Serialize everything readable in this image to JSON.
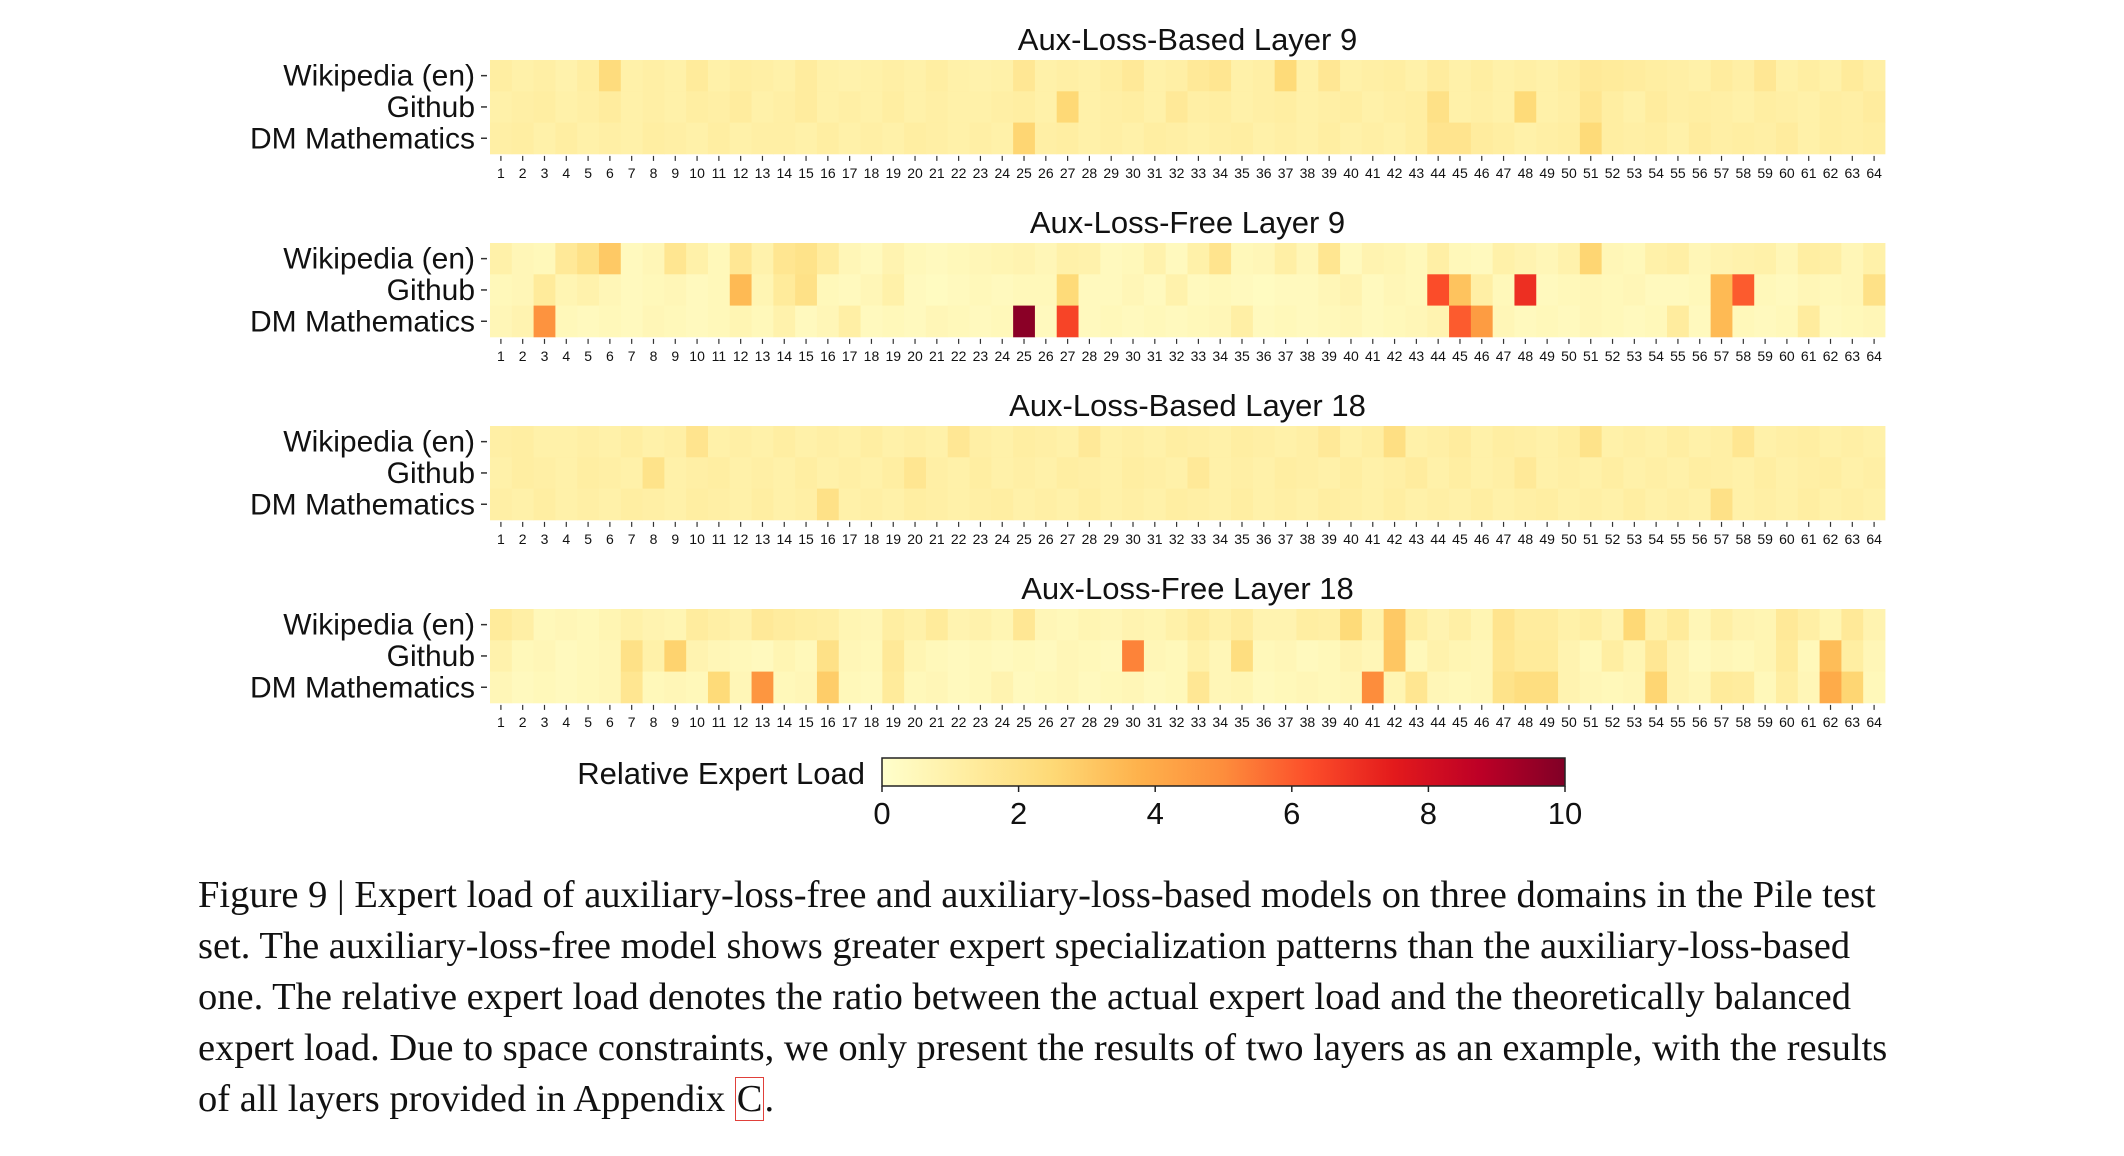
{
  "chart_data": {
    "type": "heatmap",
    "domains": [
      "Wikipedia (en)",
      "Github",
      "DM Mathematics"
    ],
    "experts": [
      "1",
      "2",
      "3",
      "4",
      "5",
      "6",
      "7",
      "8",
      "9",
      "10",
      "11",
      "12",
      "13",
      "14",
      "15",
      "16",
      "17",
      "18",
      "19",
      "20",
      "21",
      "22",
      "23",
      "24",
      "25",
      "26",
      "27",
      "28",
      "29",
      "30",
      "31",
      "32",
      "33",
      "34",
      "35",
      "36",
      "37",
      "38",
      "39",
      "40",
      "41",
      "42",
      "43",
      "44",
      "45",
      "46",
      "47",
      "48",
      "49",
      "50",
      "51",
      "52",
      "53",
      "54",
      "55",
      "56",
      "57",
      "58",
      "59",
      "60",
      "61",
      "62",
      "63",
      "64"
    ],
    "colorbar": {
      "label": "Relative Expert Load",
      "range": [
        0,
        10
      ],
      "ticks": [
        "0",
        "2",
        "4",
        "6",
        "8",
        "10"
      ]
    },
    "panels": [
      {
        "title": "Aux-Loss-Based Layer 9",
        "values": [
          [
            1.2,
            1.0,
            1.1,
            0.9,
            1.2,
            2.3,
            1.0,
            1.1,
            1.0,
            1.4,
            1.0,
            1.2,
            1.1,
            1.0,
            1.3,
            1.0,
            0.9,
            1.0,
            1.1,
            1.0,
            1.2,
            1.0,
            0.9,
            1.0,
            1.6,
            1.0,
            1.1,
            1.0,
            1.2,
            1.5,
            1.0,
            1.1,
            1.5,
            1.7,
            1.0,
            1.1,
            2.4,
            1.0,
            1.6,
            1.0,
            1.1,
            1.2,
            1.0,
            1.3,
            1.0,
            1.2,
            1.0,
            1.1,
            1.0,
            1.2,
            1.5,
            1.4,
            1.3,
            1.2,
            1.1,
            1.0,
            1.3,
            1.1,
            1.6,
            1.0,
            1.2,
            1.0,
            1.4,
            1.1
          ],
          [
            1.0,
            1.1,
            1.2,
            1.0,
            1.1,
            1.3,
            1.0,
            1.1,
            1.0,
            1.2,
            1.1,
            1.3,
            1.0,
            1.1,
            1.3,
            1.0,
            1.1,
            1.0,
            1.2,
            1.0,
            1.1,
            1.0,
            1.0,
            1.1,
            1.2,
            1.0,
            2.5,
            1.0,
            1.1,
            1.2,
            1.0,
            1.5,
            1.1,
            1.2,
            1.0,
            1.1,
            1.2,
            1.0,
            1.1,
            1.2,
            1.0,
            1.1,
            1.2,
            2.0,
            1.0,
            1.1,
            1.0,
            2.4,
            1.0,
            1.1,
            1.7,
            1.2,
            1.0,
            1.3,
            1.1,
            1.2,
            1.1,
            1.0,
            1.2,
            1.1,
            1.0,
            1.2,
            1.1,
            1.3
          ],
          [
            1.1,
            1.2,
            1.0,
            1.2,
            1.0,
            1.1,
            1.0,
            1.2,
            1.1,
            1.0,
            1.2,
            1.0,
            1.1,
            1.1,
            1.0,
            1.2,
            1.0,
            1.1,
            1.0,
            1.2,
            1.1,
            1.0,
            1.1,
            1.0,
            2.6,
            1.1,
            1.2,
            1.0,
            1.1,
            1.0,
            1.2,
            1.1,
            1.0,
            1.1,
            1.2,
            1.0,
            1.1,
            1.0,
            1.2,
            1.0,
            1.1,
            1.0,
            1.2,
            1.8,
            1.8,
            1.3,
            1.2,
            1.0,
            1.1,
            1.2,
            2.4,
            1.2,
            1.1,
            1.2,
            1.0,
            1.3,
            1.1,
            1.2,
            1.1,
            1.3,
            1.0,
            1.2,
            1.1,
            1.2
          ]
        ]
      },
      {
        "title": "Aux-Loss-Free Layer 9",
        "values": [
          [
            1.0,
            0.6,
            0.5,
            1.5,
            2.0,
            3.0,
            0.4,
            0.6,
            1.7,
            1.0,
            0.5,
            1.6,
            0.9,
            1.7,
            1.9,
            1.3,
            0.6,
            0.4,
            0.8,
            0.5,
            0.4,
            0.5,
            0.6,
            0.7,
            0.8,
            0.6,
            1.0,
            0.9,
            0.4,
            0.5,
            0.9,
            0.4,
            1.0,
            1.8,
            0.5,
            0.6,
            1.1,
            0.6,
            1.7,
            0.4,
            0.8,
            0.7,
            0.5,
            1.1,
            0.5,
            0.4,
            1.0,
            0.8,
            0.6,
            0.9,
            2.6,
            0.6,
            0.5,
            1.0,
            1.1,
            0.6,
            0.8,
            0.9,
            1.0,
            0.6,
            1.2,
            1.1,
            0.6,
            1.0
          ],
          [
            0.5,
            0.6,
            1.4,
            0.7,
            0.9,
            0.6,
            0.4,
            0.5,
            0.6,
            0.4,
            0.5,
            3.5,
            0.7,
            1.4,
            2.0,
            0.5,
            0.4,
            0.6,
            1.0,
            0.4,
            0.3,
            0.4,
            0.5,
            0.4,
            0.5,
            0.5,
            2.4,
            0.4,
            0.4,
            0.6,
            0.4,
            0.9,
            0.4,
            0.5,
            0.4,
            0.3,
            0.4,
            0.4,
            0.6,
            0.8,
            0.4,
            0.6,
            0.5,
            6.3,
            3.2,
            1.1,
            0.5,
            7.0,
            0.4,
            0.5,
            0.6,
            0.5,
            0.6,
            0.4,
            0.4,
            0.5,
            3.5,
            6.0,
            0.5,
            0.4,
            0.6,
            0.5,
            0.6,
            2.0
          ],
          [
            0.6,
            0.8,
            4.8,
            0.5,
            0.4,
            0.5,
            0.4,
            0.6,
            0.5,
            0.4,
            0.5,
            0.7,
            0.5,
            0.9,
            0.4,
            0.6,
            1.1,
            0.4,
            0.5,
            0.4,
            0.6,
            0.5,
            0.4,
            0.5,
            9.8,
            0.4,
            6.5,
            0.4,
            0.5,
            0.4,
            0.5,
            0.4,
            0.5,
            0.6,
            1.1,
            0.4,
            0.5,
            0.4,
            0.5,
            0.6,
            0.4,
            0.5,
            0.6,
            0.8,
            6.0,
            4.5,
            0.6,
            0.4,
            0.5,
            0.4,
            0.6,
            0.5,
            0.4,
            0.5,
            1.3,
            0.4,
            3.5,
            0.5,
            0.4,
            0.5,
            1.3,
            0.4,
            0.5,
            0.6
          ]
        ]
      },
      {
        "title": "Aux-Loss-Based Layer 18",
        "values": [
          [
            1.1,
            1.2,
            1.0,
            1.0,
            1.1,
            1.0,
            1.2,
            1.0,
            1.1,
            1.8,
            1.0,
            1.1,
            1.0,
            1.2,
            1.0,
            1.1,
            1.0,
            1.2,
            1.0,
            1.1,
            1.0,
            1.6,
            1.1,
            1.0,
            1.2,
            1.1,
            1.0,
            1.5,
            1.0,
            1.1,
            1.0,
            1.2,
            1.1,
            1.0,
            1.2,
            1.1,
            1.0,
            1.1,
            1.5,
            1.0,
            1.2,
            2.1,
            1.0,
            1.1,
            1.3,
            1.0,
            1.2,
            1.1,
            1.0,
            1.2,
            1.9,
            1.0,
            1.1,
            1.0,
            1.2,
            1.0,
            1.1,
            1.7,
            1.0,
            1.1,
            1.2,
            1.0,
            1.1,
            1.0
          ],
          [
            1.0,
            1.2,
            1.1,
            1.0,
            1.2,
            1.1,
            1.0,
            1.9,
            1.0,
            1.1,
            1.2,
            1.0,
            1.1,
            1.0,
            1.2,
            1.0,
            1.1,
            1.0,
            1.2,
            1.7,
            1.1,
            1.0,
            1.2,
            1.0,
            1.1,
            1.0,
            1.2,
            1.1,
            1.0,
            1.2,
            1.1,
            1.0,
            1.5,
            1.0,
            1.1,
            1.0,
            1.2,
            1.1,
            1.0,
            1.2,
            1.0,
            1.1,
            1.3,
            1.0,
            1.2,
            1.0,
            1.1,
            1.5,
            1.0,
            1.1,
            1.0,
            1.2,
            1.0,
            1.1,
            1.0,
            1.2,
            1.1,
            1.0,
            1.2,
            1.0,
            1.1,
            1.2,
            1.0,
            1.1
          ],
          [
            1.1,
            1.0,
            1.2,
            1.0,
            1.1,
            1.0,
            1.2,
            1.1,
            1.0,
            1.2,
            1.1,
            1.0,
            1.2,
            1.0,
            1.1,
            2.0,
            1.0,
            1.1,
            1.0,
            1.2,
            1.1,
            1.0,
            1.1,
            1.2,
            1.0,
            1.1,
            1.0,
            1.2,
            1.0,
            1.1,
            1.0,
            1.2,
            1.1,
            1.0,
            1.2,
            1.0,
            1.1,
            1.0,
            1.2,
            1.1,
            1.0,
            1.2,
            1.0,
            1.1,
            1.0,
            1.2,
            1.0,
            1.1,
            1.2,
            1.0,
            1.1,
            1.0,
            1.2,
            1.0,
            1.1,
            1.0,
            2.0,
            1.0,
            1.1,
            1.0,
            1.2,
            1.0,
            1.1,
            1.0
          ]
        ]
      },
      {
        "title": "Aux-Loss-Free Layer 18",
        "values": [
          [
            1.4,
            1.1,
            0.5,
            0.6,
            0.5,
            0.7,
            1.0,
            0.8,
            0.7,
            1.3,
            1.1,
            0.9,
            1.5,
            1.3,
            1.2,
            1.1,
            0.7,
            0.6,
            1.2,
            1.0,
            1.4,
            0.8,
            0.9,
            0.7,
            1.6,
            0.6,
            0.5,
            0.7,
            0.6,
            0.8,
            0.7,
            1.0,
            1.3,
            1.0,
            1.3,
            0.8,
            0.8,
            1.2,
            1.1,
            2.4,
            0.9,
            3.0,
            1.2,
            0.8,
            1.1,
            0.7,
            1.8,
            1.3,
            1.3,
            1.0,
            1.2,
            0.8,
            2.5,
            1.0,
            1.4,
            0.6,
            1.1,
            0.8,
            0.7,
            1.5,
            1.1,
            0.7,
            1.5,
            0.8
          ],
          [
            0.9,
            0.5,
            0.6,
            0.4,
            0.5,
            0.6,
            2.0,
            1.0,
            2.7,
            0.8,
            0.6,
            0.5,
            0.4,
            0.7,
            0.5,
            2.0,
            0.6,
            0.5,
            1.5,
            0.7,
            0.5,
            0.4,
            0.5,
            0.4,
            0.5,
            0.4,
            0.6,
            0.5,
            0.4,
            5.2,
            0.6,
            0.5,
            1.0,
            0.6,
            2.2,
            0.5,
            0.6,
            0.4,
            0.5,
            0.8,
            0.6,
            3.1,
            0.5,
            0.9,
            0.7,
            0.6,
            1.7,
            1.4,
            1.4,
            0.8,
            0.5,
            1.2,
            0.7,
            1.6,
            0.8,
            0.4,
            0.6,
            0.5,
            0.7,
            1.4,
            0.5,
            3.4,
            1.2,
            0.6
          ],
          [
            0.6,
            0.4,
            0.5,
            0.4,
            0.5,
            0.6,
            1.7,
            0.5,
            0.6,
            0.5,
            2.4,
            0.6,
            4.7,
            0.5,
            0.6,
            2.9,
            0.5,
            0.4,
            1.4,
            0.5,
            0.6,
            0.4,
            0.5,
            0.8,
            0.4,
            0.5,
            0.6,
            0.4,
            0.5,
            0.6,
            0.4,
            0.5,
            1.6,
            0.6,
            0.7,
            0.4,
            0.5,
            0.6,
            0.5,
            0.6,
            5.0,
            0.7,
            1.7,
            0.6,
            0.5,
            0.6,
            1.9,
            2.2,
            2.2,
            0.8,
            0.6,
            0.5,
            0.6,
            2.6,
            0.8,
            0.6,
            1.4,
            1.3,
            0.5,
            1.2,
            0.6,
            4.0,
            2.6,
            0.5
          ]
        ]
      }
    ]
  },
  "caption": {
    "text": "Figure 9 | Expert load of auxiliary-loss-free and auxiliary-loss-based models on three domains in the Pile test set. The auxiliary-loss-free model shows greater expert specialization patterns than the auxiliary-loss-based one. The relative expert load denotes the ratio between the actual expert load and the theoretically balanced expert load. Due to space constraints, we only present the results of two layers as an example, with the results of all layers provided in Appendix ",
    "appendix_ref": "C",
    "end": "."
  },
  "colors": {
    "colormap": [
      "#ffffcc",
      "#ffeda0",
      "#fed976",
      "#feb24c",
      "#fd8d3c",
      "#fc4e2a",
      "#e31a1c",
      "#bd0026",
      "#800026"
    ],
    "link_box": "#e0403a"
  }
}
